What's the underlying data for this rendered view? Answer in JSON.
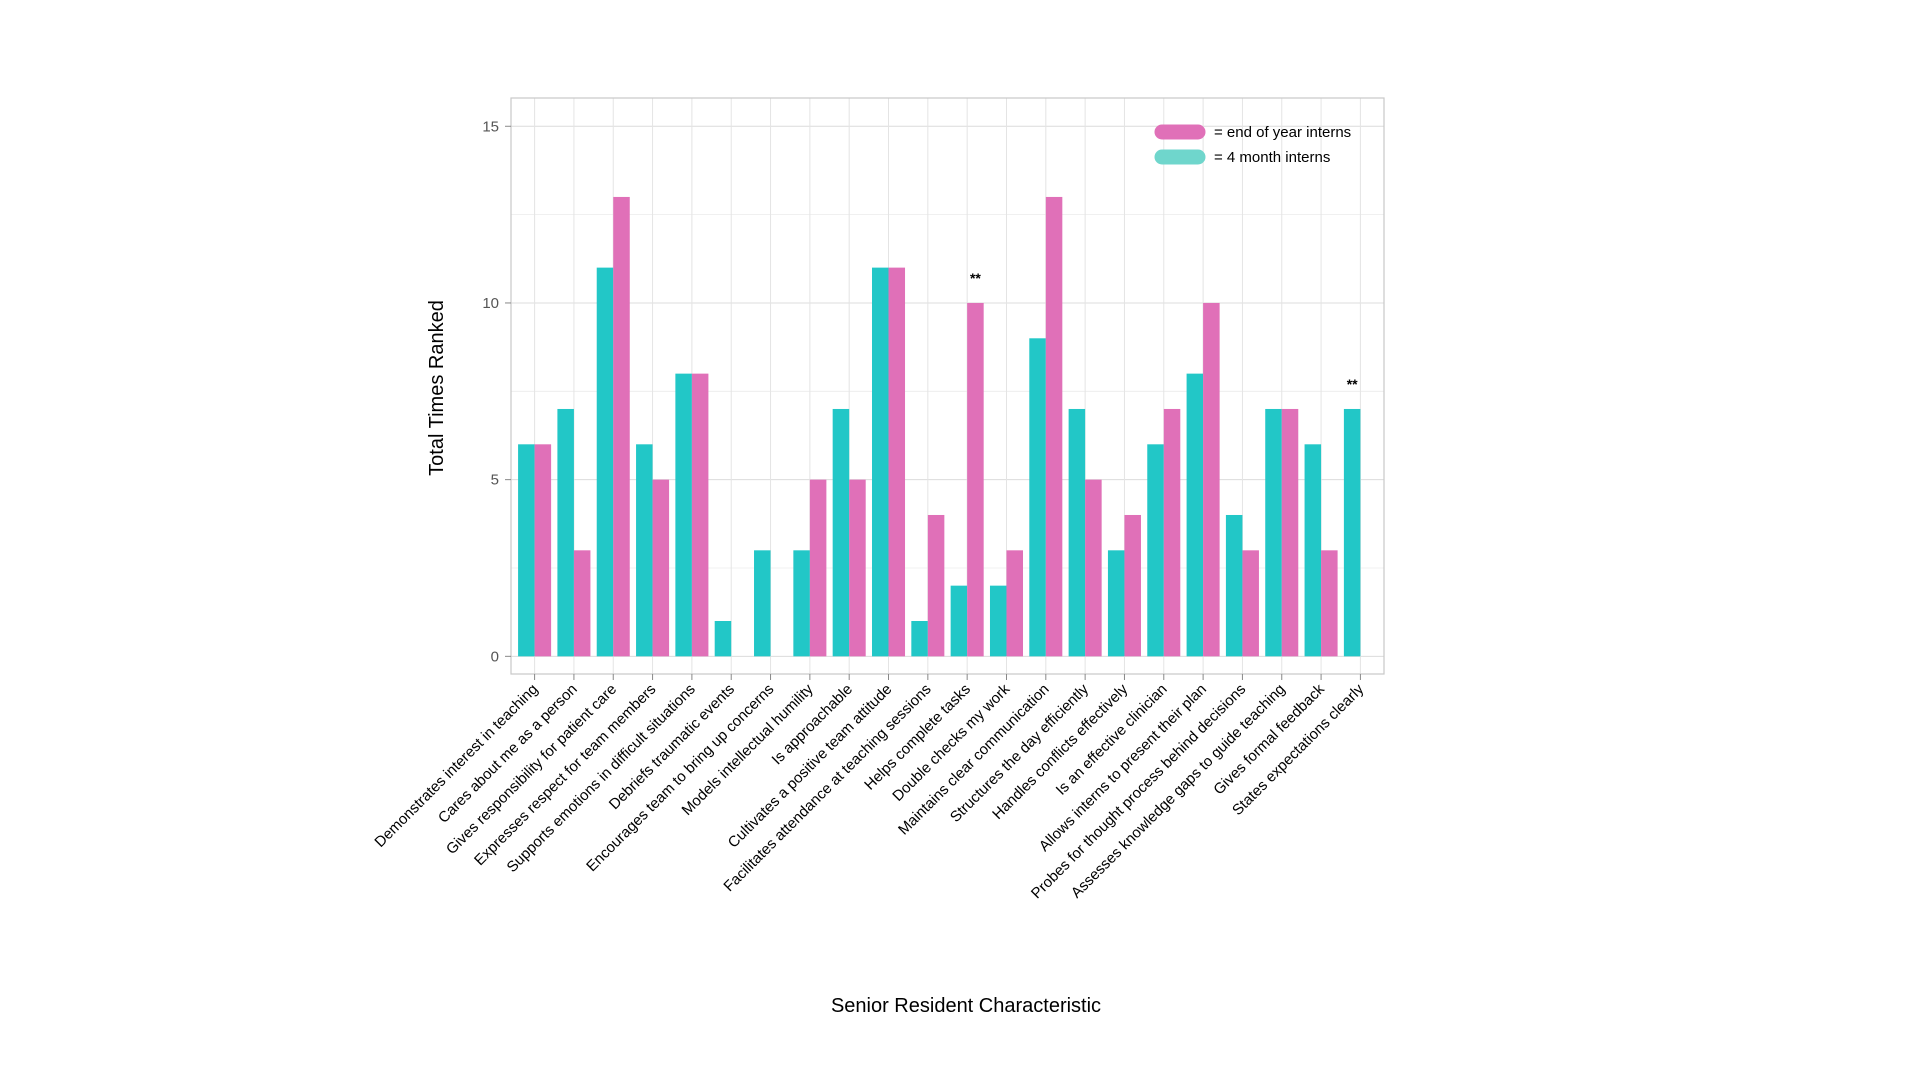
{
  "chart_data": {
    "type": "bar",
    "title": "",
    "xlabel": "Senior Resident Characteristic",
    "ylabel": "Total Times Ranked",
    "ylim": [
      -0.5,
      15.8
    ],
    "yticks": [
      0,
      5,
      10,
      15
    ],
    "grid": true,
    "legend_position": "top-right",
    "categories": [
      "Demonstrates interest in teaching",
      "Cares about me as a person",
      "Gives responsibility for patient care",
      "Expresses respect for team members",
      "Supports emotions in difficult situations",
      "Debriefs traumatic events",
      "Encourages team to bring up concerns",
      "Models intellectual humility",
      "Is approachable",
      "Cultivates a positive team attitude",
      "Facilitates attendance at teaching sessions",
      "Helps complete tasks",
      "Double checks my work",
      "Maintains clear communication",
      "Structures the day efficiently",
      "Handles conflicts effectively",
      "Is an effective clinician",
      "Allows interns to present their plan",
      "Probes for thought process behind decisions",
      "Assesses knowledge gaps to guide teaching",
      "Gives formal feedback",
      "States expectations clearly"
    ],
    "series": [
      {
        "name": "= 4 month interns",
        "color": "#22c7c7",
        "values": [
          6,
          7,
          11,
          6,
          8,
          1,
          3,
          3,
          7,
          11,
          1,
          2,
          2,
          9,
          7,
          3,
          6,
          8,
          4,
          7,
          6,
          7
        ]
      },
      {
        "name": "= end of year interns",
        "color": "#e070b8",
        "values": [
          6,
          3,
          13,
          5,
          8,
          0,
          0,
          5,
          5,
          11,
          4,
          10,
          3,
          13,
          5,
          4,
          7,
          10,
          3,
          7,
          3,
          0
        ]
      }
    ],
    "legend_order": [
      "= end of year interns",
      "= 4 month interns"
    ],
    "legend_colors": [
      "#e070b8",
      "#6fd6cc"
    ],
    "annotations": [
      {
        "category_index": 11,
        "text": "**",
        "y": 10
      },
      {
        "category_index": 21,
        "text": "**",
        "y": 7
      }
    ]
  }
}
